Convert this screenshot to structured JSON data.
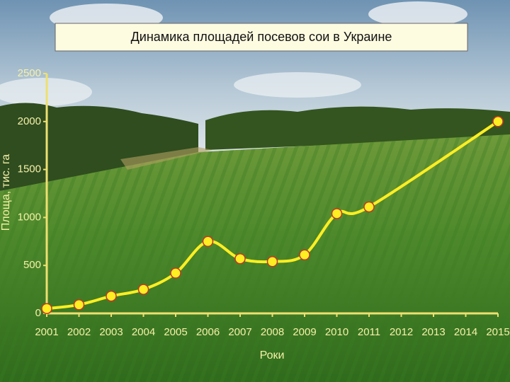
{
  "chart_data": {
    "type": "line",
    "title": "Динамика площадей посевов сои в Украине",
    "x_label": "Роки",
    "y_label": "Площа, тис. га",
    "x": [
      2001,
      2002,
      2003,
      2004,
      2005,
      2006,
      2007,
      2008,
      2009,
      2010,
      2011,
      2015
    ],
    "series": [
      {
        "name": "Площа",
        "color": "#ffee22",
        "values": [
          50,
          90,
          180,
          250,
          420,
          750,
          570,
          540,
          610,
          1040,
          1110,
          2000
        ]
      }
    ],
    "xlim": [
      2001,
      2015
    ],
    "xticks": [
      2001,
      2002,
      2003,
      2004,
      2005,
      2006,
      2007,
      2008,
      2009,
      2010,
      2011,
      2012,
      2013,
      2014,
      2015
    ],
    "ylim": [
      0,
      2500
    ],
    "yticks": [
      0,
      500,
      1000,
      1500,
      2000,
      2500
    ],
    "grid": false
  }
}
